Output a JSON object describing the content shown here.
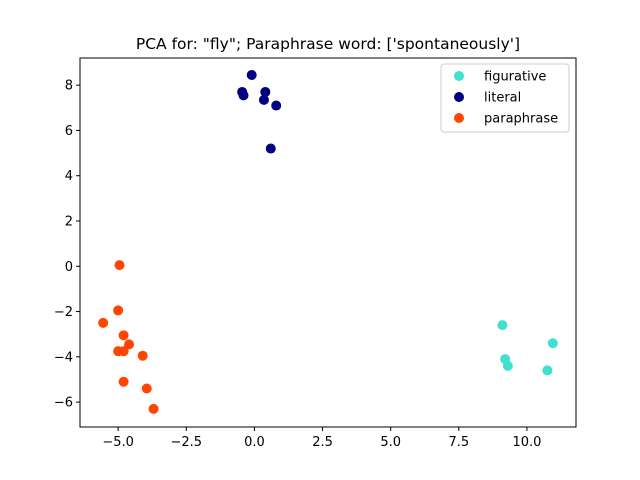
{
  "chart_data": {
    "type": "scatter",
    "title": "PCA for: \"fly\"; Paraphrase word: ['spontaneously']",
    "xlabel": "",
    "ylabel": "",
    "xlim": [
      -6.4,
      11.8
    ],
    "ylim": [
      -7.1,
      9.2
    ],
    "xticks": [
      -5.0,
      -2.5,
      0.0,
      2.5,
      5.0,
      7.5,
      10.0
    ],
    "xtick_labels": [
      "−5.0",
      "−2.5",
      "0.0",
      "2.5",
      "5.0",
      "7.5",
      "10.0"
    ],
    "yticks": [
      -6,
      -4,
      -2,
      0,
      2,
      4,
      6,
      8
    ],
    "ytick_labels": [
      "−6",
      "−4",
      "−2",
      "0",
      "2",
      "4",
      "6",
      "8"
    ],
    "grid": false,
    "legend_position": "top-right",
    "series": [
      {
        "name": "figurative",
        "color": "#40e0d0",
        "points": [
          {
            "x": 9.1,
            "y": -2.6
          },
          {
            "x": 9.2,
            "y": -4.1
          },
          {
            "x": 9.3,
            "y": -4.4
          },
          {
            "x": 10.75,
            "y": -4.6
          },
          {
            "x": 10.95,
            "y": -3.4
          }
        ]
      },
      {
        "name": "literal",
        "color": "#000080",
        "points": [
          {
            "x": -0.1,
            "y": 8.45
          },
          {
            "x": -0.45,
            "y": 7.7
          },
          {
            "x": -0.4,
            "y": 7.55
          },
          {
            "x": 0.4,
            "y": 7.7
          },
          {
            "x": 0.35,
            "y": 7.35
          },
          {
            "x": 0.8,
            "y": 7.1
          },
          {
            "x": 0.6,
            "y": 5.2
          }
        ]
      },
      {
        "name": "paraphrase",
        "color": "#ff4500",
        "points": [
          {
            "x": -4.95,
            "y": 0.05
          },
          {
            "x": -5.0,
            "y": -1.95
          },
          {
            "x": -5.55,
            "y": -2.5
          },
          {
            "x": -4.8,
            "y": -3.05
          },
          {
            "x": -4.6,
            "y": -3.45
          },
          {
            "x": -5.0,
            "y": -3.75
          },
          {
            "x": -4.8,
            "y": -3.75
          },
          {
            "x": -4.1,
            "y": -3.95
          },
          {
            "x": -4.8,
            "y": -5.1
          },
          {
            "x": -3.95,
            "y": -5.4
          },
          {
            "x": -3.7,
            "y": -6.3
          }
        ]
      }
    ]
  }
}
